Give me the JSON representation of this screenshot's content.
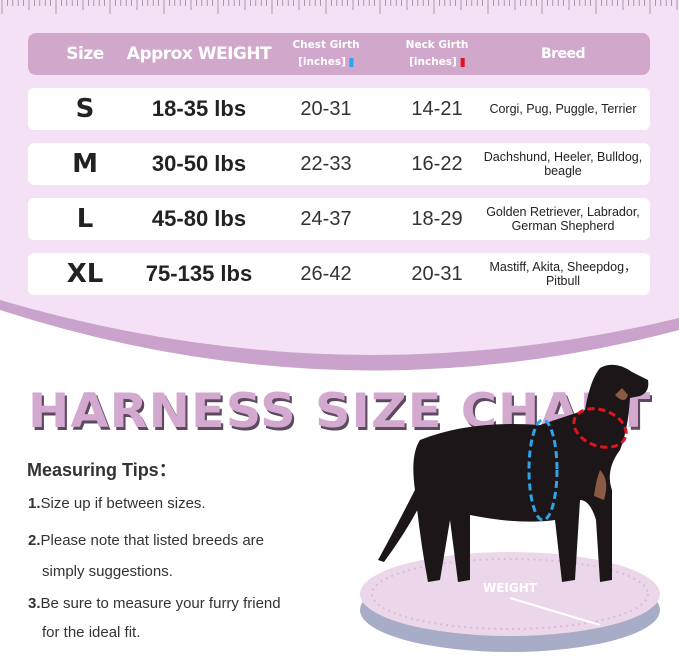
{
  "table": {
    "headers": {
      "size": "Size",
      "weight": "Approx WEIGHT",
      "chest": "Chest Girth",
      "chest_unit": "[inches]",
      "neck": "Neck Girth",
      "neck_unit": "[inches]",
      "breed": "Breed"
    },
    "colors": {
      "header_bg": "#d1a8cc",
      "page_bg": "#f5e1f5",
      "chest_marker": "#2ea3e8",
      "neck_marker": "#e0141e"
    },
    "rows": [
      {
        "size": "S",
        "weight": "18-35 lbs",
        "chest": "20-31",
        "neck": "14-21",
        "breed": "Corgi, Pug, Puggle, Terrier"
      },
      {
        "size": "M",
        "weight": "30-50 lbs",
        "chest": "22-33",
        "neck": "16-22",
        "breed": "Dachshund, Heeler, Bulldog, beagle"
      },
      {
        "size": "L",
        "weight": "45-80 lbs",
        "chest": "24-37",
        "neck": "18-29",
        "breed": "Golden Retriever, Labrador, German Shepherd"
      },
      {
        "size": "XL",
        "weight": "75-135 lbs",
        "chest": "26-42",
        "neck": "20-31",
        "breed": "Mastiff, Akita, Sheepdog， Pitbull"
      }
    ]
  },
  "title": "HARNESS SIZE CHART",
  "tips": {
    "heading": "Measuring Tips：",
    "items": [
      {
        "num": "1.",
        "text": "Size up if between sizes."
      },
      {
        "num": "2.",
        "text": "Please note that listed breeds are",
        "text2": "simply suggestions."
      },
      {
        "num": "3.",
        "text": "Be sure to measure your furry friend",
        "text2": "for the ideal fit."
      }
    ]
  },
  "illustration": {
    "scale_label": "WEIGHT"
  }
}
